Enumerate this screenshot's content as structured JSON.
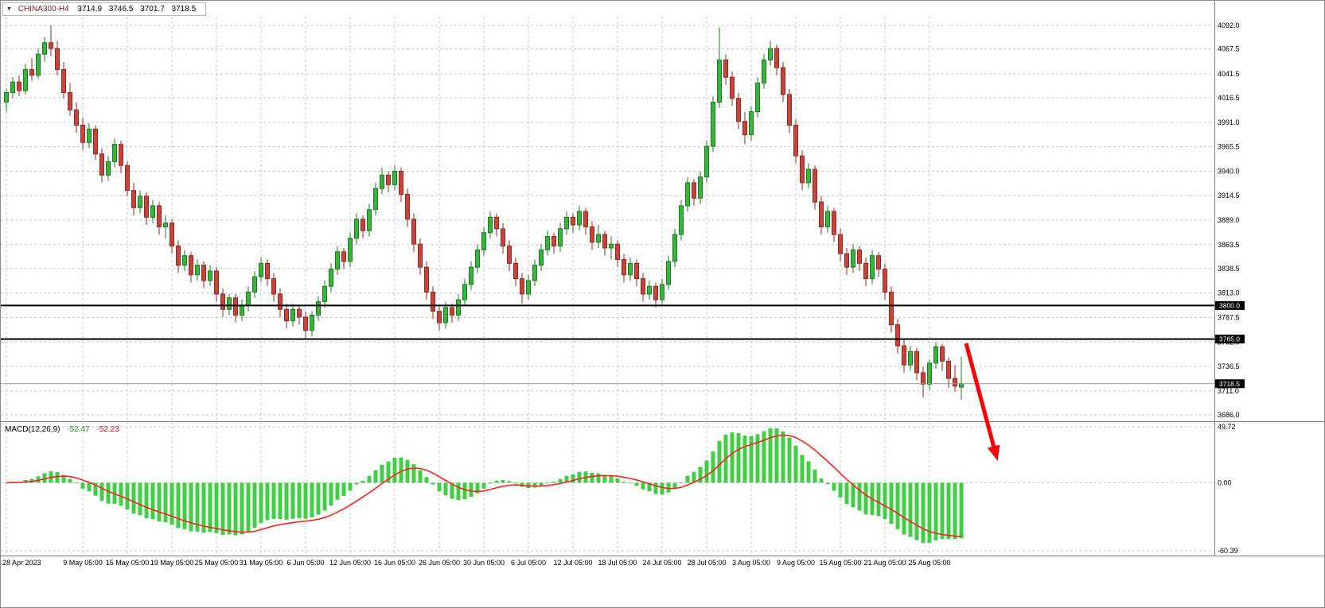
{
  "header": {
    "dropdown_icon": "▼",
    "symbol": "CHINA300-H4",
    "open": "3714.9",
    "high": "3746.5",
    "low": "3701.7",
    "close": "3718.5"
  },
  "macd_panel": {
    "label": "MACD(12,26,9)",
    "main_value": "-52.47",
    "signal_value": "-52.23"
  },
  "colors": {
    "background": "#ffffff",
    "grid": "#c6c6c6",
    "axis_border": "#808080",
    "up": "#35b53a",
    "up_border": "#1d7a21",
    "down": "#c9433a",
    "down_border": "#8e2a22",
    "wick_up": "#1d7a21",
    "wick_down": "#8e2a22",
    "macd_hist": "#3fce44",
    "macd_signal": "#ff2020",
    "hline": "#000000",
    "last_price_line": "#9a9a9a",
    "tag_bg": "#000000",
    "tag_text": "#ffffff",
    "arrow": "#ff0000",
    "text": "#000000"
  },
  "chart_data": {
    "type": "candlestick",
    "symbol": "CHINA300-H4",
    "timeframe": "H4",
    "title": "CHINA300-H4 3714.9 3746.5 3701.7 3718.5",
    "grid_on": true,
    "price_axis": {
      "min": 3686.0,
      "max": 4092.0,
      "labels": [
        "4092.0",
        "4067.5",
        "4041.5",
        "4016.5",
        "3991.0",
        "3965.5",
        "3940.0",
        "3914.5",
        "3889.0",
        "3863.5",
        "3838.5",
        "3813.0",
        "3787.5",
        "3762.0",
        "3736.5",
        "3711.0",
        "3686.0"
      ]
    },
    "time_axis": {
      "labels": [
        "28 Apr 2023",
        "9 May 05:00",
        "15 May 05:00",
        "19 May 05:00",
        "25 May 05:00",
        "31 May 05:00",
        "6 Jun 05:00",
        "12 Jun 05:00",
        "16 Jun 05:00",
        "26 Jun 05:00",
        "30 Jun 05:00",
        "6 Jul 05:00",
        "12 Jul 05:00",
        "18 Jul 05:00",
        "24 Jul 05:00",
        "28 Jul 05:00",
        "3 Aug 05:00",
        "9 Aug 05:00",
        "15 Aug 05:00",
        "21 Aug 05:00",
        "25 Aug 05:00"
      ],
      "gridline_candle_indices": [
        0,
        12,
        19,
        26,
        33,
        40,
        47,
        54,
        61,
        68,
        75,
        82,
        89,
        96,
        103,
        110,
        117,
        124,
        131,
        138,
        145
      ]
    },
    "horizontal_lines": [
      {
        "price": 3800.0,
        "label": "3800.0"
      },
      {
        "price": 3765.0,
        "label": "3765.0"
      }
    ],
    "last_price": 3718.5,
    "last_price_label": "3718.5",
    "candles": [
      [
        4012,
        4026,
        4002,
        4022
      ],
      [
        4022,
        4038,
        4016,
        4033
      ],
      [
        4033,
        4040,
        4018,
        4024
      ],
      [
        4024,
        4052,
        4020,
        4046
      ],
      [
        4046,
        4058,
        4034,
        4040
      ],
      [
        4040,
        4068,
        4036,
        4062
      ],
      [
        4062,
        4080,
        4054,
        4074
      ],
      [
        4074,
        4092,
        4060,
        4068
      ],
      [
        4068,
        4076,
        4040,
        4046
      ],
      [
        4046,
        4054,
        4016,
        4022
      ],
      [
        4022,
        4032,
        3998,
        4004
      ],
      [
        4004,
        4012,
        3980,
        3988
      ],
      [
        3988,
        3996,
        3962,
        3970
      ],
      [
        3970,
        3990,
        3964,
        3984
      ],
      [
        3984,
        3988,
        3952,
        3958
      ],
      [
        3958,
        3964,
        3928,
        3936
      ],
      [
        3936,
        3956,
        3930,
        3950
      ],
      [
        3950,
        3974,
        3944,
        3968
      ],
      [
        3968,
        3972,
        3938,
        3946
      ],
      [
        3946,
        3950,
        3914,
        3920
      ],
      [
        3920,
        3928,
        3894,
        3902
      ],
      [
        3902,
        3920,
        3896,
        3914
      ],
      [
        3914,
        3918,
        3884,
        3892
      ],
      [
        3892,
        3910,
        3886,
        3904
      ],
      [
        3904,
        3908,
        3874,
        3882
      ],
      [
        3882,
        3894,
        3870,
        3886
      ],
      [
        3886,
        3890,
        3854,
        3862
      ],
      [
        3862,
        3868,
        3834,
        3842
      ],
      [
        3842,
        3858,
        3836,
        3852
      ],
      [
        3852,
        3856,
        3824,
        3832
      ],
      [
        3832,
        3848,
        3826,
        3842
      ],
      [
        3842,
        3846,
        3818,
        3826
      ],
      [
        3826,
        3842,
        3820,
        3836
      ],
      [
        3836,
        3840,
        3804,
        3812
      ],
      [
        3812,
        3818,
        3788,
        3796
      ],
      [
        3796,
        3812,
        3790,
        3808
      ],
      [
        3808,
        3812,
        3782,
        3790
      ],
      [
        3790,
        3806,
        3784,
        3800
      ],
      [
        3800,
        3820,
        3794,
        3814
      ],
      [
        3814,
        3836,
        3808,
        3830
      ],
      [
        3830,
        3850,
        3824,
        3844
      ],
      [
        3844,
        3848,
        3820,
        3828
      ],
      [
        3828,
        3834,
        3804,
        3812
      ],
      [
        3812,
        3818,
        3788,
        3796
      ],
      [
        3796,
        3802,
        3776,
        3784
      ],
      [
        3784,
        3802,
        3778,
        3796
      ],
      [
        3796,
        3800,
        3780,
        3788
      ],
      [
        3788,
        3794,
        3766,
        3774
      ],
      [
        3774,
        3794,
        3768,
        3790
      ],
      [
        3790,
        3810,
        3784,
        3804
      ],
      [
        3804,
        3826,
        3798,
        3820
      ],
      [
        3820,
        3844,
        3814,
        3838
      ],
      [
        3838,
        3862,
        3832,
        3856
      ],
      [
        3856,
        3860,
        3838,
        3846
      ],
      [
        3846,
        3876,
        3840,
        3870
      ],
      [
        3870,
        3896,
        3864,
        3890
      ],
      [
        3890,
        3894,
        3870,
        3878
      ],
      [
        3878,
        3906,
        3872,
        3900
      ],
      [
        3900,
        3928,
        3894,
        3922
      ],
      [
        3922,
        3944,
        3916,
        3936
      ],
      [
        3936,
        3940,
        3918,
        3926
      ],
      [
        3926,
        3946,
        3920,
        3940
      ],
      [
        3940,
        3944,
        3908,
        3916
      ],
      [
        3916,
        3922,
        3882,
        3890
      ],
      [
        3890,
        3896,
        3856,
        3864
      ],
      [
        3864,
        3870,
        3832,
        3840
      ],
      [
        3840,
        3846,
        3806,
        3814
      ],
      [
        3814,
        3820,
        3786,
        3794
      ],
      [
        3794,
        3800,
        3774,
        3782
      ],
      [
        3782,
        3804,
        3776,
        3798
      ],
      [
        3798,
        3802,
        3782,
        3790
      ],
      [
        3790,
        3812,
        3784,
        3806
      ],
      [
        3806,
        3828,
        3800,
        3822
      ],
      [
        3822,
        3846,
        3816,
        3840
      ],
      [
        3840,
        3864,
        3834,
        3858
      ],
      [
        3858,
        3882,
        3852,
        3876
      ],
      [
        3876,
        3898,
        3870,
        3892
      ],
      [
        3892,
        3896,
        3872,
        3880
      ],
      [
        3880,
        3886,
        3854,
        3862
      ],
      [
        3862,
        3868,
        3836,
        3844
      ],
      [
        3844,
        3850,
        3820,
        3828
      ],
      [
        3828,
        3834,
        3802,
        3812
      ],
      [
        3812,
        3832,
        3806,
        3826
      ],
      [
        3826,
        3848,
        3820,
        3842
      ],
      [
        3842,
        3864,
        3836,
        3858
      ],
      [
        3858,
        3878,
        3852,
        3872
      ],
      [
        3872,
        3876,
        3854,
        3862
      ],
      [
        3862,
        3886,
        3856,
        3880
      ],
      [
        3880,
        3898,
        3874,
        3892
      ],
      [
        3892,
        3896,
        3876,
        3884
      ],
      [
        3884,
        3904,
        3878,
        3898
      ],
      [
        3898,
        3902,
        3874,
        3882
      ],
      [
        3882,
        3888,
        3858,
        3866
      ],
      [
        3866,
        3884,
        3860,
        3874
      ],
      [
        3874,
        3878,
        3852,
        3860
      ],
      [
        3860,
        3872,
        3848,
        3864
      ],
      [
        3864,
        3868,
        3840,
        3848
      ],
      [
        3848,
        3854,
        3824,
        3832
      ],
      [
        3832,
        3850,
        3826,
        3844
      ],
      [
        3844,
        3848,
        3820,
        3828
      ],
      [
        3828,
        3834,
        3804,
        3812
      ],
      [
        3812,
        3826,
        3806,
        3820
      ],
      [
        3820,
        3824,
        3798,
        3806
      ],
      [
        3806,
        3828,
        3800,
        3822
      ],
      [
        3822,
        3852,
        3816,
        3846
      ],
      [
        3846,
        3880,
        3840,
        3874
      ],
      [
        3874,
        3910,
        3868,
        3904
      ],
      [
        3904,
        3934,
        3898,
        3928
      ],
      [
        3928,
        3932,
        3904,
        3912
      ],
      [
        3912,
        3940,
        3906,
        3934
      ],
      [
        3934,
        3972,
        3928,
        3966
      ],
      [
        3966,
        4018,
        3960,
        4012
      ],
      [
        4012,
        4090,
        4006,
        4056
      ],
      [
        4056,
        4062,
        4030,
        4038
      ],
      [
        4038,
        4044,
        4008,
        4016
      ],
      [
        4016,
        4022,
        3984,
        3992
      ],
      [
        3992,
        4002,
        3968,
        3978
      ],
      [
        3978,
        4008,
        3972,
        4002
      ],
      [
        4002,
        4038,
        3996,
        4032
      ],
      [
        4032,
        4062,
        4026,
        4056
      ],
      [
        4056,
        4076,
        4050,
        4068
      ],
      [
        4068,
        4072,
        4040,
        4048
      ],
      [
        4048,
        4054,
        4012,
        4020
      ],
      [
        4020,
        4026,
        3980,
        3988
      ],
      [
        3988,
        3994,
        3948,
        3956
      ],
      [
        3956,
        3962,
        3920,
        3928
      ],
      [
        3928,
        3948,
        3922,
        3942
      ],
      [
        3942,
        3946,
        3900,
        3908
      ],
      [
        3908,
        3914,
        3874,
        3882
      ],
      [
        3882,
        3904,
        3876,
        3898
      ],
      [
        3898,
        3902,
        3866,
        3874
      ],
      [
        3874,
        3880,
        3846,
        3854
      ],
      [
        3854,
        3860,
        3832,
        3840
      ],
      [
        3840,
        3864,
        3834,
        3858
      ],
      [
        3858,
        3862,
        3836,
        3844
      ],
      [
        3844,
        3850,
        3820,
        3828
      ],
      [
        3828,
        3858,
        3822,
        3852
      ],
      [
        3852,
        3856,
        3830,
        3838
      ],
      [
        3838,
        3844,
        3806,
        3814
      ],
      [
        3814,
        3820,
        3772,
        3780
      ],
      [
        3780,
        3786,
        3750,
        3758
      ],
      [
        3758,
        3764,
        3730,
        3738
      ],
      [
        3738,
        3758,
        3732,
        3752
      ],
      [
        3752,
        3756,
        3722,
        3730
      ],
      [
        3730,
        3736,
        3704,
        3718
      ],
      [
        3718,
        3744,
        3712,
        3740
      ],
      [
        3740,
        3762,
        3734,
        3757
      ],
      [
        3757,
        3760,
        3732,
        3742
      ],
      [
        3742,
        3746,
        3714,
        3724
      ],
      [
        3724,
        3738,
        3710,
        3716
      ],
      [
        3714.9,
        3746.5,
        3701.7,
        3718.5
      ]
    ],
    "macd": {
      "label": "MACD(12,26,9)",
      "params": [
        12,
        26,
        9
      ],
      "main_value": -52.47,
      "signal_value": -52.23,
      "axis": {
        "max": 49.72,
        "min": -60.39,
        "labels": [
          "49.72",
          "0.00",
          "-60.39"
        ]
      }
    },
    "annotation_arrow": {
      "from": [
        1213,
        431
      ],
      "to": [
        1252,
        577
      ],
      "color": "#ff0000",
      "width": 5
    }
  }
}
